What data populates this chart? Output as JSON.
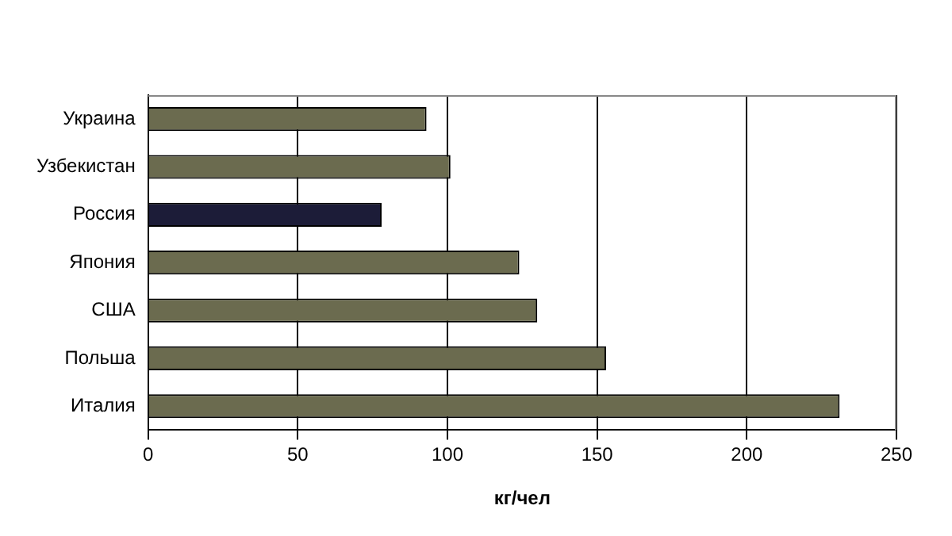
{
  "chart_data": {
    "type": "bar",
    "orientation": "horizontal",
    "xlabel": "кг/чел",
    "categories": [
      "Украина",
      "Узбекистан",
      "Россия",
      "Япония",
      "США",
      "Польша",
      "Италия"
    ],
    "values": [
      93,
      101,
      78,
      124,
      130,
      153,
      231
    ],
    "colors": [
      "#6b6b4f",
      "#6b6b4f",
      "#1c1c38",
      "#6b6b4f",
      "#6b6b4f",
      "#6b6b4f",
      "#6b6b4f"
    ],
    "xlim": [
      0,
      250
    ],
    "xticks": [
      0,
      50,
      100,
      150,
      200,
      250
    ],
    "grid": "x",
    "legend": false
  }
}
